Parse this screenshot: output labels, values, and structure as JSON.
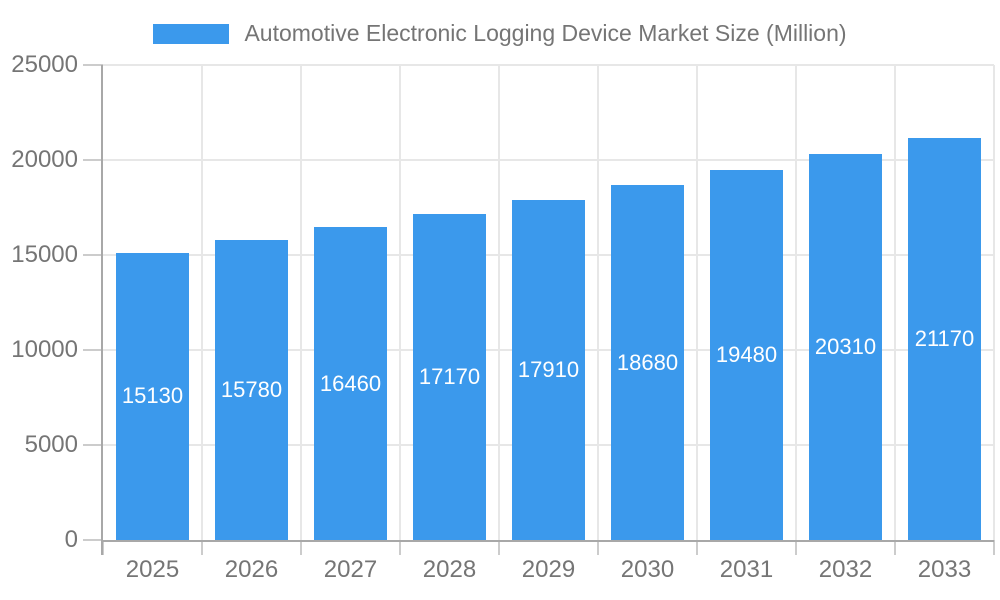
{
  "chart_data": {
    "type": "bar",
    "title": "Automotive Electronic Logging Device Market Size (Million)",
    "legend_position": "top",
    "categories": [
      "2025",
      "2026",
      "2027",
      "2028",
      "2029",
      "2030",
      "2031",
      "2032",
      "2033"
    ],
    "values": [
      15130,
      15780,
      16460,
      17170,
      17910,
      18680,
      19480,
      20310,
      21170
    ],
    "xlabel": "",
    "ylabel": "",
    "ylim": [
      0,
      25000
    ],
    "yticks": [
      0,
      5000,
      10000,
      15000,
      20000,
      25000
    ],
    "ytick_labels": [
      "0",
      "5000",
      "10000",
      "15000",
      "20000",
      "25000"
    ],
    "grid": true,
    "colors": {
      "bar": "#3B99EC",
      "bar_label": "#FFFFFF",
      "text": "#757575",
      "gridline": "#E7E7E7",
      "tick": "#CCCCCC",
      "axis_line": "#A8A8A8",
      "background": "#FFFFFF"
    }
  }
}
